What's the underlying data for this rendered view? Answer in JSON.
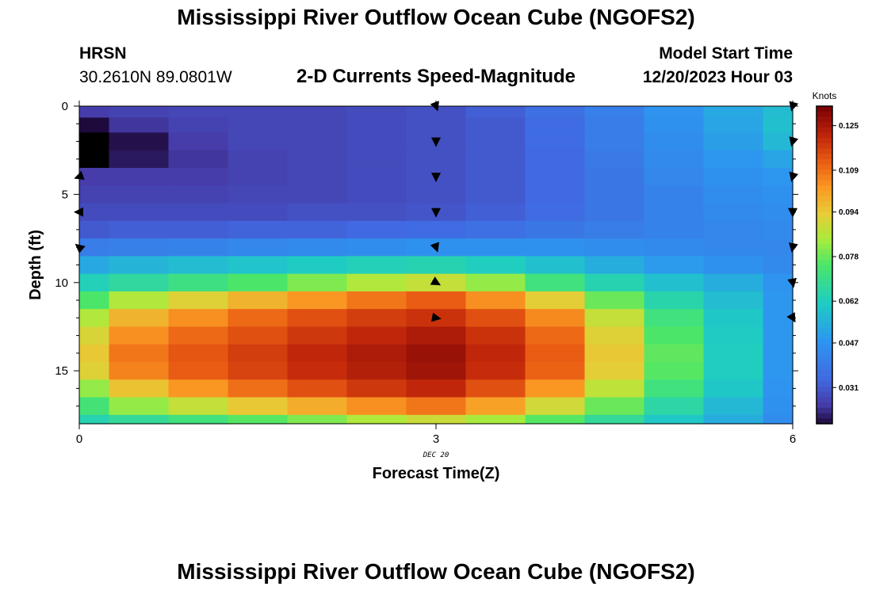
{
  "header": {
    "title": "Mississippi River Outflow Ocean Cube (NGOFS2)",
    "station": "HRSN",
    "coords": "30.2610N  89.0801W",
    "subtitle": "2-D Currents Speed-Magnitude",
    "model_start_label": "Model Start Time",
    "model_start_value": "12/20/2023 Hour 03"
  },
  "footer": {
    "next_title": "Mississippi River Outflow Ocean Cube (NGOFS2)"
  },
  "chart_data": {
    "type": "heatmap",
    "title": "2-D Currents Speed-Magnitude",
    "xlabel": "Forecast Time(Z)",
    "ylabel": "Depth (ft)",
    "x_date_label": "DEC 20",
    "xlim": [
      0,
      6
    ],
    "ylim": [
      0,
      18
    ],
    "x_ticks": [
      0,
      3,
      6
    ],
    "y_ticks": [
      0,
      5,
      10,
      15
    ],
    "colorbar": {
      "units": "Knots",
      "range": [
        0.018,
        0.132
      ],
      "ticks": [
        0.031,
        0.047,
        0.062,
        0.078,
        0.094,
        0.109,
        0.125
      ]
    },
    "x_centers": [
      0,
      0.5,
      1,
      1.5,
      2,
      2.5,
      3,
      3.5,
      4,
      4.5,
      5,
      5.5,
      6
    ],
    "depth_layers": [
      0.3,
      1,
      2,
      3,
      4,
      5,
      6,
      7,
      8,
      9,
      10,
      11,
      12,
      13,
      14,
      15,
      16,
      17,
      18
    ],
    "speed_knots": [
      [
        0.025,
        0.026,
        0.027,
        0.027,
        0.027,
        0.028,
        0.029,
        0.032,
        0.036,
        0.041,
        0.047,
        0.052,
        0.057
      ],
      [
        0.012,
        0.024,
        0.026,
        0.027,
        0.027,
        0.028,
        0.029,
        0.031,
        0.035,
        0.04,
        0.046,
        0.051,
        0.058
      ],
      [
        0.002,
        0.019,
        0.025,
        0.027,
        0.027,
        0.028,
        0.029,
        0.031,
        0.035,
        0.04,
        0.045,
        0.05,
        0.056
      ],
      [
        0.006,
        0.02,
        0.024,
        0.026,
        0.027,
        0.028,
        0.029,
        0.031,
        0.034,
        0.039,
        0.044,
        0.048,
        0.051
      ],
      [
        0.025,
        0.025,
        0.025,
        0.026,
        0.027,
        0.028,
        0.029,
        0.031,
        0.034,
        0.038,
        0.043,
        0.046,
        0.048
      ],
      [
        0.026,
        0.026,
        0.026,
        0.027,
        0.027,
        0.028,
        0.029,
        0.031,
        0.034,
        0.038,
        0.042,
        0.045,
        0.046
      ],
      [
        0.028,
        0.028,
        0.028,
        0.028,
        0.029,
        0.029,
        0.03,
        0.032,
        0.035,
        0.038,
        0.042,
        0.044,
        0.045
      ],
      [
        0.031,
        0.032,
        0.032,
        0.033,
        0.033,
        0.034,
        0.035,
        0.036,
        0.038,
        0.04,
        0.042,
        0.043,
        0.044
      ],
      [
        0.04,
        0.041,
        0.042,
        0.043,
        0.044,
        0.045,
        0.046,
        0.046,
        0.046,
        0.045,
        0.044,
        0.043,
        0.043
      ],
      [
        0.052,
        0.055,
        0.057,
        0.059,
        0.061,
        0.063,
        0.064,
        0.062,
        0.058,
        0.053,
        0.049,
        0.046,
        0.044
      ],
      [
        0.063,
        0.067,
        0.071,
        0.075,
        0.08,
        0.085,
        0.088,
        0.082,
        0.072,
        0.064,
        0.058,
        0.053,
        0.047
      ],
      [
        0.075,
        0.085,
        0.092,
        0.098,
        0.103,
        0.108,
        0.112,
        0.104,
        0.093,
        0.078,
        0.065,
        0.057,
        0.048
      ],
      [
        0.085,
        0.098,
        0.104,
        0.11,
        0.114,
        0.117,
        0.119,
        0.114,
        0.105,
        0.088,
        0.072,
        0.06,
        0.048
      ],
      [
        0.091,
        0.104,
        0.11,
        0.114,
        0.118,
        0.121,
        0.124,
        0.119,
        0.11,
        0.092,
        0.075,
        0.061,
        0.048
      ],
      [
        0.094,
        0.108,
        0.113,
        0.117,
        0.121,
        0.124,
        0.127,
        0.121,
        0.112,
        0.094,
        0.077,
        0.062,
        0.048
      ],
      [
        0.092,
        0.106,
        0.112,
        0.116,
        0.12,
        0.123,
        0.126,
        0.12,
        0.111,
        0.093,
        0.076,
        0.062,
        0.048
      ],
      [
        0.082,
        0.095,
        0.103,
        0.109,
        0.114,
        0.118,
        0.121,
        0.114,
        0.103,
        0.087,
        0.072,
        0.06,
        0.047
      ],
      [
        0.073,
        0.082,
        0.088,
        0.094,
        0.099,
        0.104,
        0.108,
        0.101,
        0.09,
        0.078,
        0.066,
        0.056,
        0.046
      ],
      [
        0.064,
        0.068,
        0.072,
        0.076,
        0.08,
        0.085,
        0.089,
        0.084,
        0.076,
        0.068,
        0.06,
        0.053,
        0.045
      ]
    ],
    "direction_vectors": [
      {
        "time": 0,
        "depth": 4,
        "angle_deg": -70
      },
      {
        "time": 0,
        "depth": 6,
        "angle_deg": -90
      },
      {
        "time": 0,
        "depth": 8,
        "angle_deg": -130
      },
      {
        "time": 3,
        "depth": 0,
        "angle_deg": 20
      },
      {
        "time": 3,
        "depth": 2,
        "angle_deg": 0
      },
      {
        "time": 3,
        "depth": 4,
        "angle_deg": 0
      },
      {
        "time": 3,
        "depth": 6,
        "angle_deg": 0
      },
      {
        "time": 3,
        "depth": 8,
        "angle_deg": 20
      },
      {
        "time": 3,
        "depth": 10,
        "angle_deg": 60
      },
      {
        "time": 3,
        "depth": 12,
        "angle_deg": 80
      },
      {
        "time": 6,
        "depth": 0,
        "angle_deg": -15
      },
      {
        "time": 6,
        "depth": 2,
        "angle_deg": -15
      },
      {
        "time": 6,
        "depth": 4,
        "angle_deg": -15
      },
      {
        "time": 6,
        "depth": 6,
        "angle_deg": 0
      },
      {
        "time": 6,
        "depth": 8,
        "angle_deg": -10
      },
      {
        "time": 6,
        "depth": 10,
        "angle_deg": 10
      },
      {
        "time": 6,
        "depth": 12,
        "angle_deg": 30
      }
    ],
    "colors": {
      "background": "#ffffff",
      "axis": "#000000",
      "arrow": "#000000"
    }
  }
}
